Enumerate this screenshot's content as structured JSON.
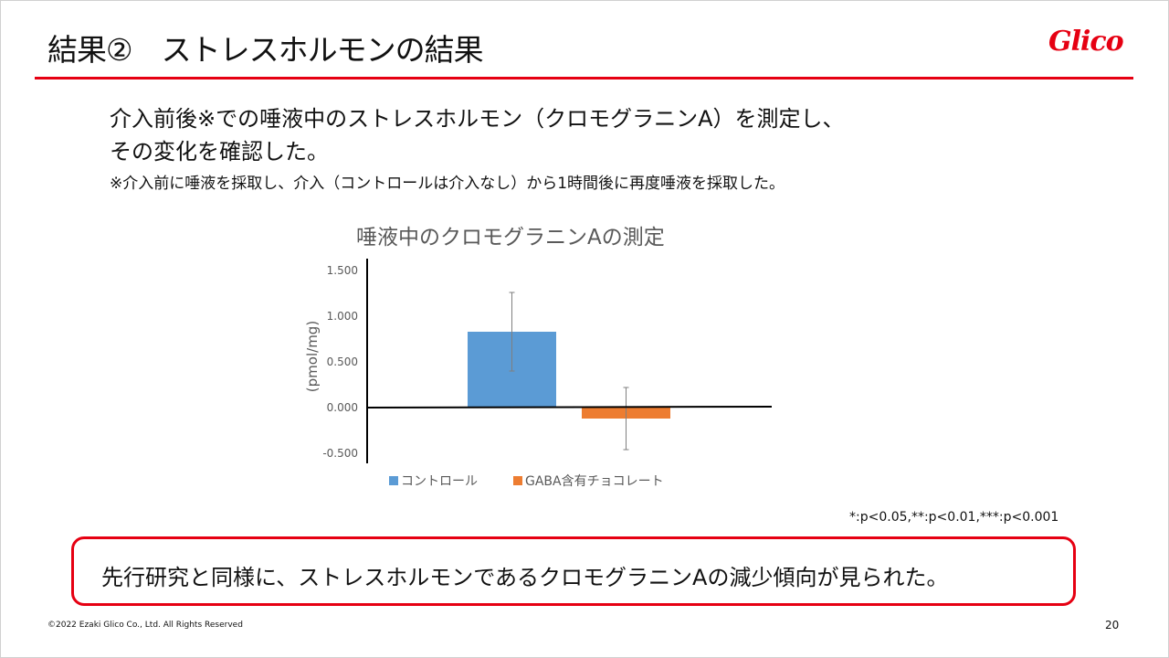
{
  "slide": {
    "title": "結果②　ストレスホルモンの結果",
    "logo_text": "Glico",
    "lead_lines": [
      "介入前後※での唾液中のストレスホルモン（クロモグラニンA）を測定し、",
      "その変化を確認した。"
    ],
    "note": "※介入前に唾液を採取し、介入（コントロールは介入なし）から1時間後に再度唾液を採取した。",
    "significance_note": "*:p<0.05,**:p<0.01,***:p<0.001",
    "conclusion": "先行研究と同様に、ストレスホルモンであるクロモグラニンAの減少傾向が見られた。",
    "copyright": "©2022 Ezaki Glico Co., Ltd. All Rights Reserved",
    "page_number": "20",
    "accent_color": "#e60012"
  },
  "chart_data": {
    "type": "bar",
    "title": "唾液中のクロモグラニンAの測定",
    "ylabel": "(pmol/mg)",
    "xlabel": "",
    "ylim": [
      -0.5,
      1.5
    ],
    "yticks": [
      "1.500",
      "1.000",
      "0.500",
      "0.000",
      "-0.500"
    ],
    "ytick_values": [
      1.5,
      1.0,
      0.5,
      0.0,
      -0.5
    ],
    "grid": false,
    "legend": "bottom",
    "series": [
      {
        "name": "コントロール",
        "value": 0.83,
        "error": 0.43,
        "color": "#5b9bd5"
      },
      {
        "name": "GABA含有チョコレート",
        "value": -0.12,
        "error": 0.34,
        "color": "#ed7d31"
      }
    ]
  }
}
